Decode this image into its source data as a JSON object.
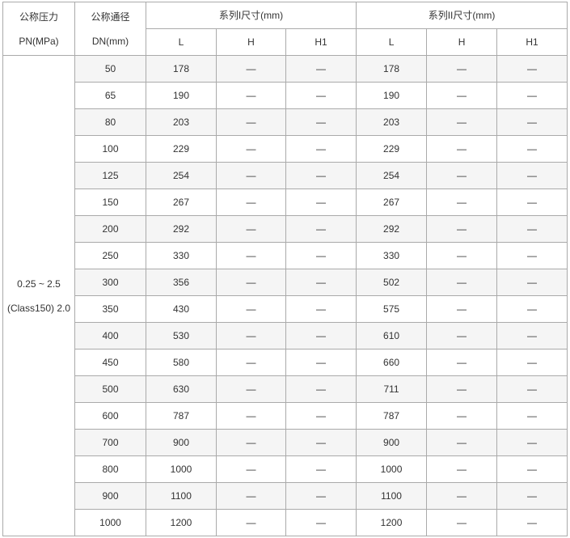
{
  "header": {
    "pn": [
      "公称压力",
      "PN(MPa)"
    ],
    "dn": [
      "公称通径",
      "DN(mm)"
    ],
    "series1": "系列I尺寸(mm)",
    "series2": "系列II尺寸(mm)",
    "sub": [
      "L",
      "H",
      "H1",
      "L",
      "H",
      "H1"
    ]
  },
  "pressure": [
    "0.25 ~ 2.5",
    "(Class150) 2.0"
  ],
  "rows": [
    [
      "50",
      "178",
      "—",
      "—",
      "178",
      "—",
      "—"
    ],
    [
      "65",
      "190",
      "—",
      "—",
      "190",
      "—",
      "—"
    ],
    [
      "80",
      "203",
      "—",
      "—",
      "203",
      "—",
      "—"
    ],
    [
      "100",
      "229",
      "—",
      "—",
      "229",
      "—",
      "—"
    ],
    [
      "125",
      "254",
      "—",
      "—",
      "254",
      "—",
      "—"
    ],
    [
      "150",
      "267",
      "—",
      "—",
      "267",
      "—",
      "—"
    ],
    [
      "200",
      "292",
      "—",
      "—",
      "292",
      "—",
      "—"
    ],
    [
      "250",
      "330",
      "—",
      "—",
      "330",
      "—",
      "—"
    ],
    [
      "300",
      "356",
      "—",
      "—",
      "502",
      "—",
      "—"
    ],
    [
      "350",
      "430",
      "—",
      "—",
      "575",
      "—",
      "—"
    ],
    [
      "400",
      "530",
      "—",
      "—",
      "610",
      "—",
      "—"
    ],
    [
      "450",
      "580",
      "—",
      "—",
      "660",
      "—",
      "—"
    ],
    [
      "500",
      "630",
      "—",
      "—",
      "711",
      "—",
      "—"
    ],
    [
      "600",
      "787",
      "—",
      "—",
      "787",
      "—",
      "—"
    ],
    [
      "700",
      "900",
      "—",
      "—",
      "900",
      "—",
      "—"
    ],
    [
      "800",
      "1000",
      "—",
      "—",
      "1000",
      "—",
      "—"
    ],
    [
      "900",
      "1100",
      "—",
      "—",
      "1100",
      "—",
      "—"
    ],
    [
      "1000",
      "1200",
      "—",
      "—",
      "1200",
      "—",
      "—"
    ]
  ]
}
